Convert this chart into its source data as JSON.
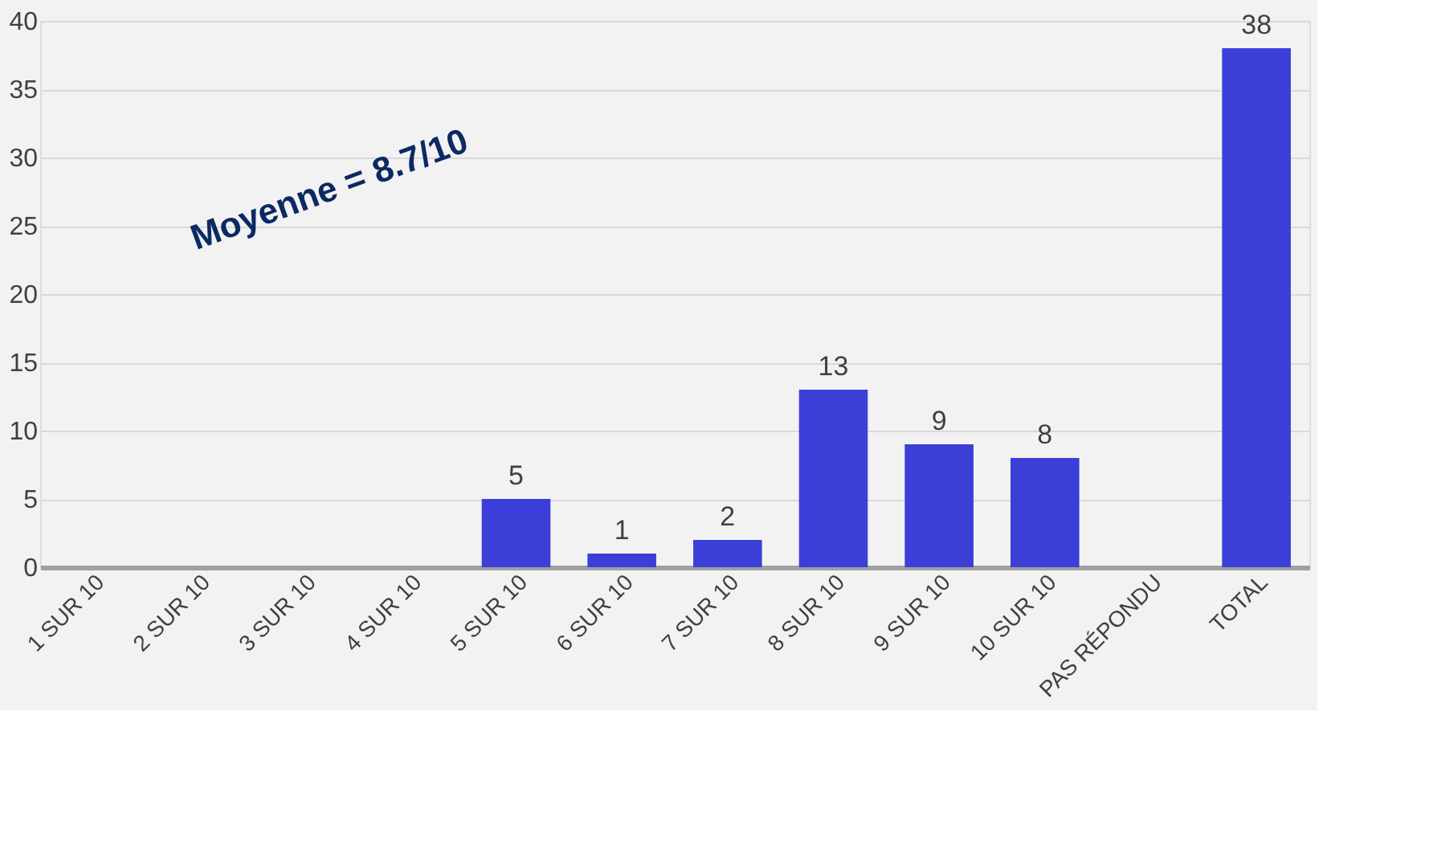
{
  "chart_data": {
    "type": "bar",
    "categories": [
      "1 SUR 10",
      "2 SUR 10",
      "3 SUR 10",
      "4 SUR 10",
      "5 SUR 10",
      "6 SUR 10",
      "7 SUR 10",
      "8 SUR 10",
      "9 SUR 10",
      "10 SUR 10",
      "PAS RÉPONDU",
      "TOTAL"
    ],
    "values": [
      null,
      null,
      null,
      null,
      5,
      1,
      2,
      13,
      9,
      8,
      null,
      38
    ],
    "value_labels": [
      null,
      null,
      null,
      null,
      "5",
      "1",
      "2",
      "13",
      "9",
      "8",
      null,
      "38"
    ],
    "color": "#3b3fd8",
    "ylim": [
      0,
      40
    ],
    "yticks": [
      0,
      5,
      10,
      15,
      20,
      25,
      30,
      35,
      40
    ],
    "grid": "y",
    "annotations": [
      "Moyenne = 8.7/10"
    ]
  }
}
